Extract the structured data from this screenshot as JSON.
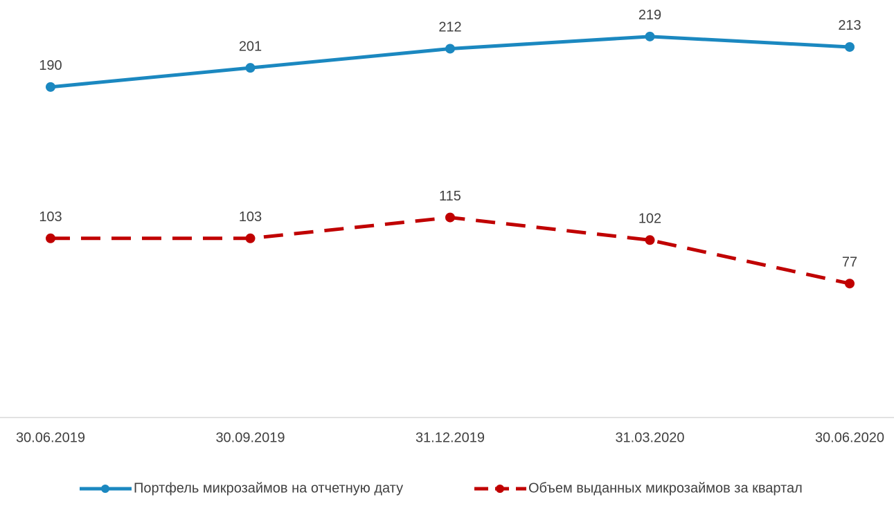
{
  "chart_data": {
    "type": "line",
    "categories": [
      "30.06.2019",
      "30.09.2019",
      "31.12.2019",
      "31.03.2020",
      "30.06.2020"
    ],
    "series": [
      {
        "name": "Портфель микрозаймов на отчетную дату",
        "color": "#1b88c0",
        "dash": false,
        "values": [
          190,
          201,
          212,
          219,
          213
        ]
      },
      {
        "name": "Объем выданных микрозаймов за квартал",
        "color": "#c00000",
        "dash": true,
        "values": [
          103,
          103,
          115,
          102,
          77
        ]
      }
    ],
    "ylim": [
      0,
      240
    ],
    "legend": "bottom"
  }
}
